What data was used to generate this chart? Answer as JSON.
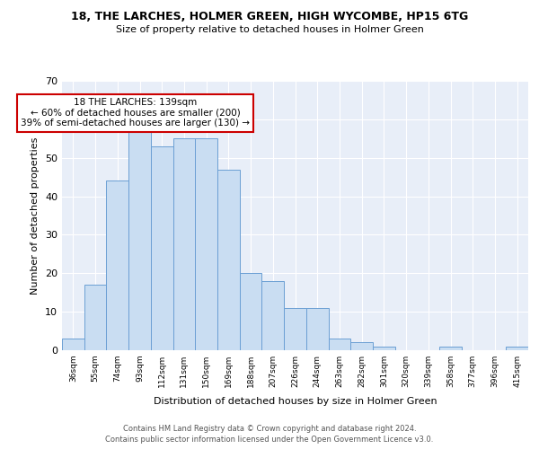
{
  "title1": "18, THE LARCHES, HOLMER GREEN, HIGH WYCOMBE, HP15 6TG",
  "title2": "Size of property relative to detached houses in Holmer Green",
  "xlabel": "Distribution of detached houses by size in Holmer Green",
  "ylabel": "Number of detached properties",
  "categories": [
    "36sqm",
    "55sqm",
    "74sqm",
    "93sqm",
    "112sqm",
    "131sqm",
    "150sqm",
    "169sqm",
    "188sqm",
    "207sqm",
    "226sqm",
    "244sqm",
    "263sqm",
    "282sqm",
    "301sqm",
    "320sqm",
    "339sqm",
    "358sqm",
    "377sqm",
    "396sqm",
    "415sqm"
  ],
  "values": [
    3,
    17,
    44,
    57,
    53,
    55,
    55,
    47,
    20,
    18,
    11,
    11,
    3,
    2,
    1,
    0,
    0,
    1,
    0,
    0,
    1
  ],
  "bar_color": "#c9ddf2",
  "bar_edge_color": "#6b9fd4",
  "annotation_text": "18 THE LARCHES: 139sqm\n← 60% of detached houses are smaller (200)\n39% of semi-detached houses are larger (130) →",
  "annotation_box_color": "#ffffff",
  "annotation_box_edge": "#cc0000",
  "ylim": [
    0,
    70
  ],
  "yticks": [
    0,
    10,
    20,
    30,
    40,
    50,
    60,
    70
  ],
  "plot_bg_color": "#e8eef8",
  "footer1": "Contains HM Land Registry data © Crown copyright and database right 2024.",
  "footer2": "Contains public sector information licensed under the Open Government Licence v3.0."
}
